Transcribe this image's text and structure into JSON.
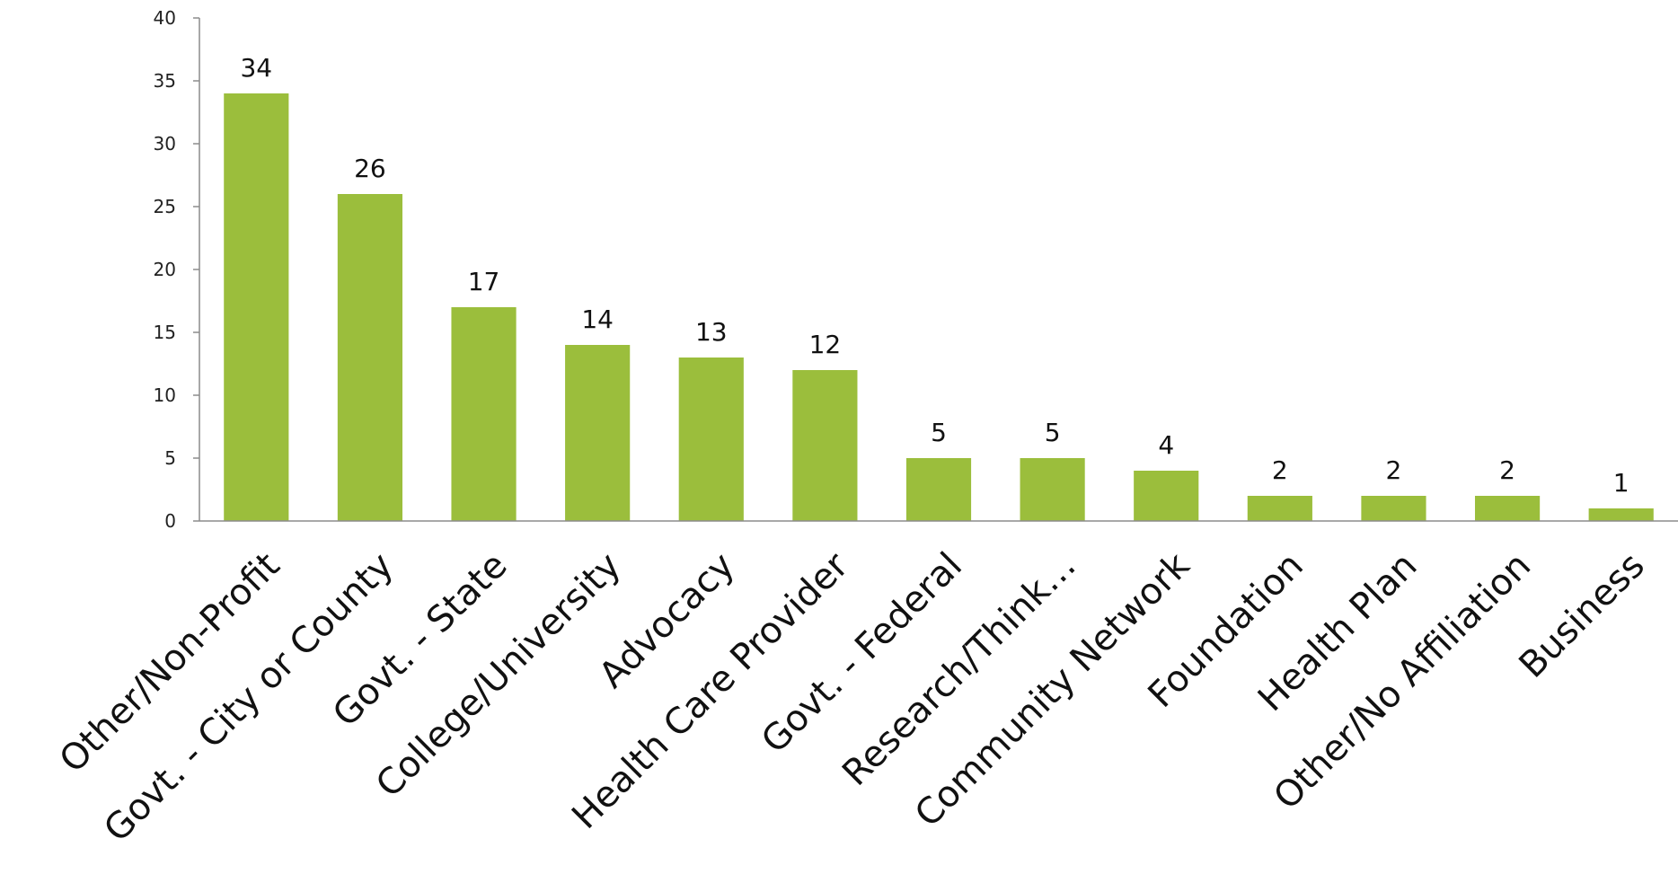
{
  "chart_data": {
    "type": "bar",
    "title": "",
    "xlabel": "",
    "ylabel": "",
    "categories": [
      "Other/Non-Profit",
      "Govt. - City or County",
      "Govt. - State",
      "College/University",
      "Advocacy",
      "Health Care Provider",
      "Govt. - Federal",
      "Research/Think…",
      "Community Network",
      "Foundation",
      "Health Plan",
      "Other/No Affiliation",
      "Business"
    ],
    "values": [
      34,
      26,
      17,
      14,
      13,
      12,
      5,
      5,
      4,
      2,
      2,
      2,
      1
    ],
    "ylim": [
      0,
      40
    ],
    "yticks": [
      0,
      5,
      10,
      15,
      20,
      25,
      30,
      35,
      40
    ],
    "bar_color": "#9BBE3C",
    "data_labels": true,
    "grid": false,
    "legend": "none"
  }
}
